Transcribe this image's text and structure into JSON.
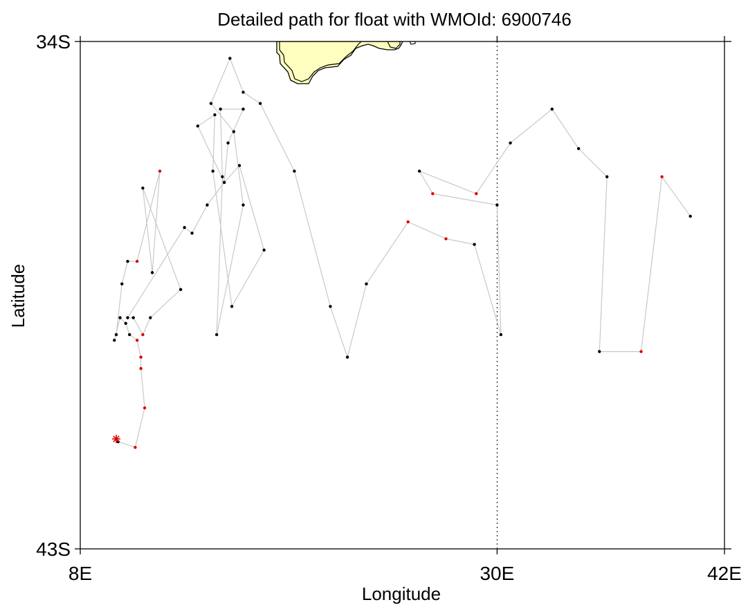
{
  "title": "Detailed path for float with WMOId: 6900746",
  "xlabel": "Longitude",
  "ylabel": "Latitude",
  "x_ticks": [
    {
      "value": 8,
      "label": "8E"
    },
    {
      "value": 30,
      "label": "30E"
    },
    {
      "value": 42,
      "label": "42E"
    }
  ],
  "y_ticks": [
    {
      "value": -34,
      "label": "34S"
    },
    {
      "value": -43,
      "label": "43S"
    }
  ],
  "colors": {
    "land": "#ffffc0",
    "track": "#c8c8c8",
    "profile_normal": "#000000",
    "profile_flagged": "#dd0000",
    "deploy_marker": "#dd0000",
    "meridian": "#000000"
  },
  "chart_data": {
    "type": "scatter",
    "xlim": [
      8,
      42
    ],
    "ylim": [
      -43,
      -34
    ],
    "reference_meridian": 30,
    "deployment": {
      "lon": 9.9,
      "lat": -41.05
    },
    "track": [
      {
        "lon": 10.0,
        "lat": -41.1,
        "flag": false
      },
      {
        "lon": 10.9,
        "lat": -41.2,
        "flag": true
      },
      {
        "lon": 11.4,
        "lat": -40.5,
        "flag": true
      },
      {
        "lon": 11.2,
        "lat": -39.8,
        "flag": true
      },
      {
        "lon": 11.2,
        "lat": -39.6,
        "flag": true
      },
      {
        "lon": 11.0,
        "lat": -39.3,
        "flag": true
      },
      {
        "lon": 10.6,
        "lat": -39.2,
        "flag": false
      },
      {
        "lon": 10.4,
        "lat": -39.0,
        "flag": false
      },
      {
        "lon": 10.1,
        "lat": -38.9,
        "flag": false
      },
      {
        "lon": 9.8,
        "lat": -39.3,
        "flag": false
      },
      {
        "lon": 9.9,
        "lat": -39.2,
        "flag": false
      },
      {
        "lon": 10.2,
        "lat": -38.3,
        "flag": false
      },
      {
        "lon": 10.5,
        "lat": -37.9,
        "flag": false
      },
      {
        "lon": 11.0,
        "lat": -37.9,
        "flag": true
      },
      {
        "lon": 12.2,
        "lat": -36.3,
        "flag": true
      },
      {
        "lon": 11.8,
        "lat": -38.1,
        "flag": false
      },
      {
        "lon": 11.3,
        "lat": -36.6,
        "flag": false
      },
      {
        "lon": 13.3,
        "lat": -38.4,
        "flag": false
      },
      {
        "lon": 11.7,
        "lat": -38.9,
        "flag": false
      },
      {
        "lon": 11.3,
        "lat": -39.2,
        "flag": true
      },
      {
        "lon": 10.8,
        "lat": -38.9,
        "flag": false
      },
      {
        "lon": 10.5,
        "lat": -38.9,
        "flag": false
      },
      {
        "lon": 13.5,
        "lat": -37.3,
        "flag": false
      },
      {
        "lon": 13.9,
        "lat": -37.4,
        "flag": false
      },
      {
        "lon": 14.7,
        "lat": -36.9,
        "flag": false
      },
      {
        "lon": 15.6,
        "lat": -36.5,
        "flag": false
      },
      {
        "lon": 14.2,
        "lat": -35.5,
        "flag": false
      },
      {
        "lon": 15.1,
        "lat": -35.3,
        "flag": false
      },
      {
        "lon": 15.0,
        "lat": -36.3,
        "flag": false
      },
      {
        "lon": 16.0,
        "lat": -38.7,
        "flag": false
      },
      {
        "lon": 17.7,
        "lat": -37.7,
        "flag": false
      },
      {
        "lon": 16.4,
        "lat": -36.2,
        "flag": false
      },
      {
        "lon": 15.6,
        "lat": -36.5,
        "flag": false
      },
      {
        "lon": 15.8,
        "lat": -35.8,
        "flag": false
      },
      {
        "lon": 16.6,
        "lat": -35.2,
        "flag": false
      },
      {
        "lon": 15.4,
        "lat": -35.2,
        "flag": false
      },
      {
        "lon": 15.5,
        "lat": -36.4,
        "flag": false
      },
      {
        "lon": 15.2,
        "lat": -39.2,
        "flag": false
      },
      {
        "lon": 16.6,
        "lat": -36.9,
        "flag": false
      },
      {
        "lon": 16.1,
        "lat": -35.6,
        "flag": false
      },
      {
        "lon": 14.9,
        "lat": -35.1,
        "flag": false
      },
      {
        "lon": 15.9,
        "lat": -34.3,
        "flag": false
      },
      {
        "lon": 16.6,
        "lat": -34.9,
        "flag": false
      },
      {
        "lon": 17.5,
        "lat": -35.1,
        "flag": false
      },
      {
        "lon": 19.3,
        "lat": -36.3,
        "flag": false
      },
      {
        "lon": 21.2,
        "lat": -38.7,
        "flag": false
      },
      {
        "lon": 22.1,
        "lat": -39.6,
        "flag": false
      },
      {
        "lon": 23.1,
        "lat": -38.3,
        "flag": false
      },
      {
        "lon": 25.3,
        "lat": -37.2,
        "flag": true
      },
      {
        "lon": 27.3,
        "lat": -37.5,
        "flag": true
      },
      {
        "lon": 28.8,
        "lat": -37.6,
        "flag": false
      },
      {
        "lon": 30.2,
        "lat": -39.2,
        "flag": false
      },
      {
        "lon": 30.0,
        "lat": -36.9,
        "flag": false
      },
      {
        "lon": 26.6,
        "lat": -36.7,
        "flag": true
      },
      {
        "lon": 25.9,
        "lat": -36.3,
        "flag": false
      },
      {
        "lon": 28.9,
        "lat": -36.7,
        "flag": true
      },
      {
        "lon": 30.7,
        "lat": -35.8,
        "flag": false
      },
      {
        "lon": 32.9,
        "lat": -35.2,
        "flag": false
      },
      {
        "lon": 34.3,
        "lat": -35.9,
        "flag": false
      },
      {
        "lon": 35.8,
        "lat": -36.4,
        "flag": false
      },
      {
        "lon": 35.4,
        "lat": -39.5,
        "flag": false
      },
      {
        "lon": 37.6,
        "lat": -39.5,
        "flag": true
      },
      {
        "lon": 38.7,
        "lat": -36.4,
        "flag": true
      },
      {
        "lon": 40.2,
        "lat": -37.1,
        "flag": false
      }
    ]
  }
}
